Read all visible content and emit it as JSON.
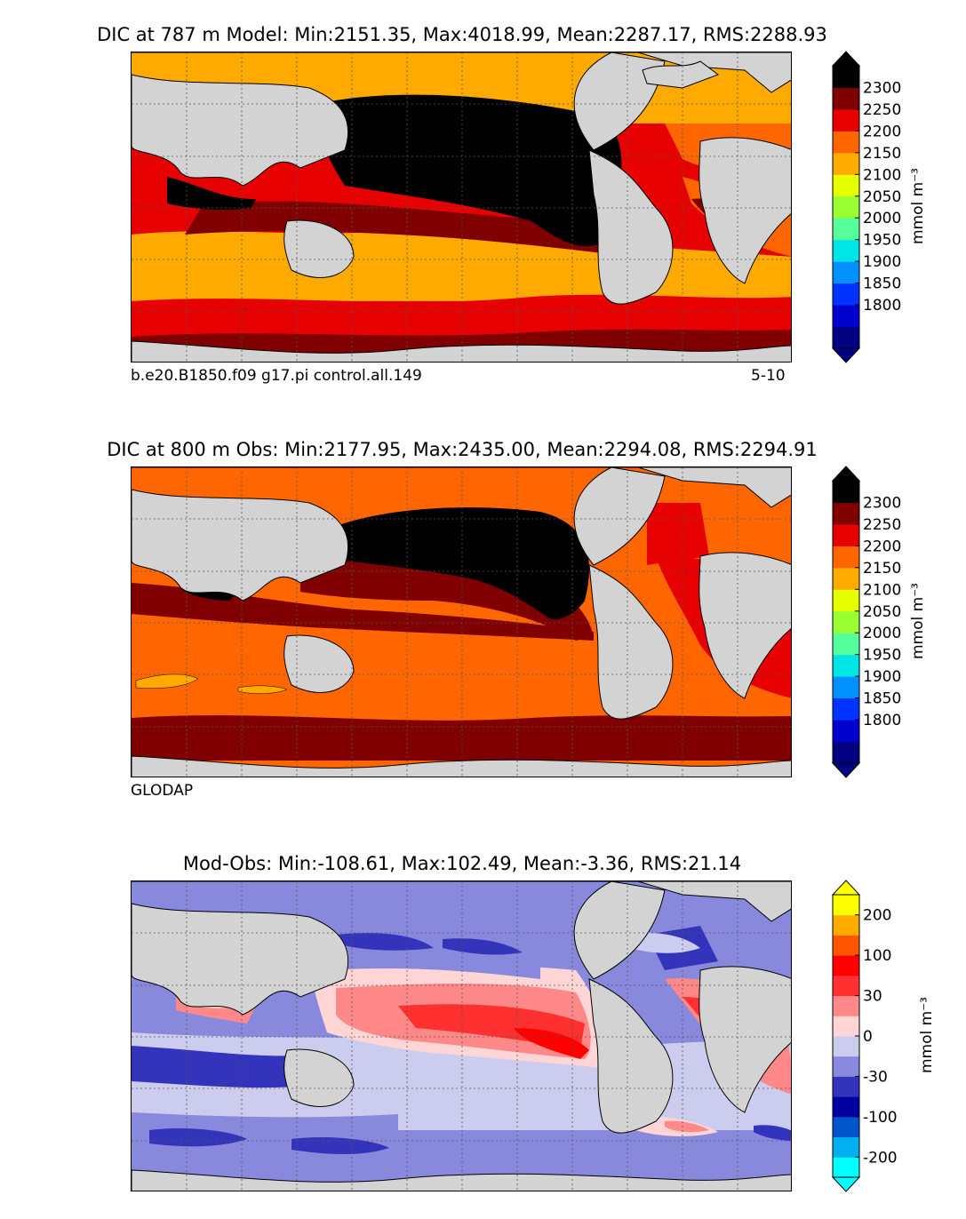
{
  "panels": [
    {
      "title": "DIC at 787 m Model: Min:2151.35, Max:4018.99, Mean:2287.17, RMS:2288.93",
      "left_label": "b.e20.B1850.f09 g17.pi control.all.149",
      "right_label": "5-10",
      "unit": "mmol m⁻³",
      "ticks": [
        "2300",
        "2250",
        "2200",
        "2150",
        "2100",
        "2050",
        "2000",
        "1950",
        "1900",
        "1850",
        "1800"
      ]
    },
    {
      "title": "DIC at 800 m Obs: Min:2177.95, Max:2435.00, Mean:2294.08, RMS:2294.91",
      "left_label": "GLODAP",
      "unit": "mmol m⁻³",
      "ticks": [
        "2300",
        "2250",
        "2200",
        "2150",
        "2100",
        "2050",
        "2000",
        "1950",
        "1900",
        "1850",
        "1800"
      ]
    },
    {
      "title": "Mod-Obs: Min:-108.61, Max:102.49, Mean:-3.36, RMS:21.14",
      "unit": "mmol m⁻³",
      "ticks": [
        "200",
        "100",
        "30",
        "0",
        "-30",
        "-100",
        "-200"
      ]
    }
  ],
  "colors": {
    "abs_scale": [
      "#000080",
      "#0000cd",
      "#0033ff",
      "#0090ff",
      "#00e5e5",
      "#55ff99",
      "#99ff33",
      "#e6ff00",
      "#ffaa00",
      "#ff6600",
      "#e60000",
      "#800000",
      "#000000"
    ],
    "diff_scale": [
      "#00ffff",
      "#00b0f0",
      "#0055cc",
      "#0000a0",
      "#3333bb",
      "#8888dd",
      "#ccccee",
      "#ffd5d5",
      "#ff8888",
      "#ff3030",
      "#ff0000",
      "#ff5500",
      "#ffaa00",
      "#ffff00"
    ],
    "land": "#d3d3d3"
  }
}
